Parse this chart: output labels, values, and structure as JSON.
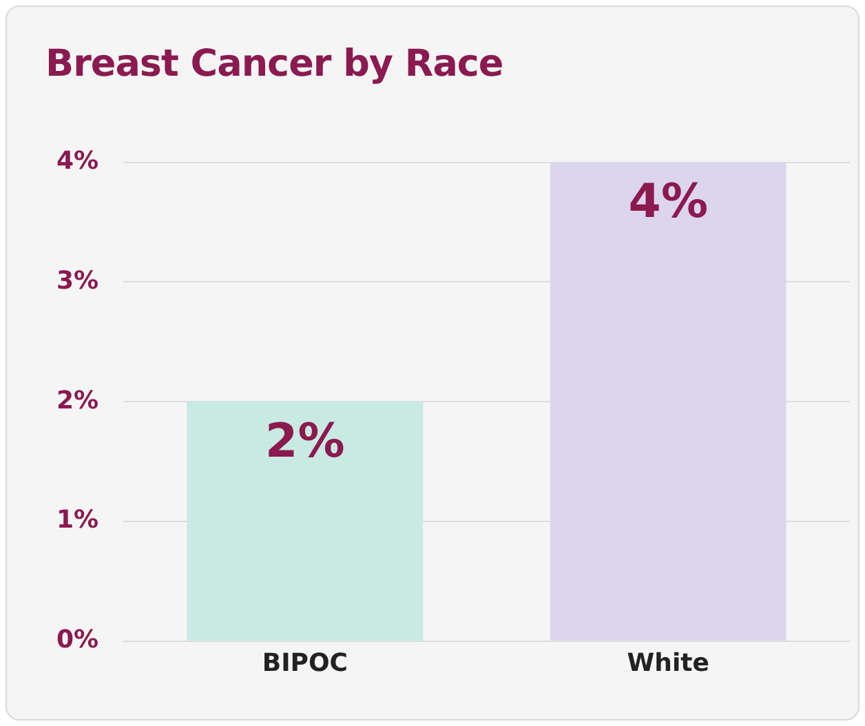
{
  "chart_data": {
    "type": "bar",
    "title": "Breast Cancer by Race",
    "categories": [
      "BIPOC",
      "White"
    ],
    "values": [
      2,
      4
    ],
    "colors": [
      "#c9eae3",
      "#dcd5ee"
    ],
    "value_labels": [
      "2%",
      "4%"
    ],
    "ylim": [
      0,
      4
    ],
    "yticks": [
      {
        "value": 0,
        "label": "0%"
      },
      {
        "value": 1,
        "label": "1%"
      },
      {
        "value": 2,
        "label": "2%"
      },
      {
        "value": 3,
        "label": "3%"
      },
      {
        "value": 4,
        "label": "4%"
      }
    ],
    "grid": "y",
    "legend": false
  }
}
